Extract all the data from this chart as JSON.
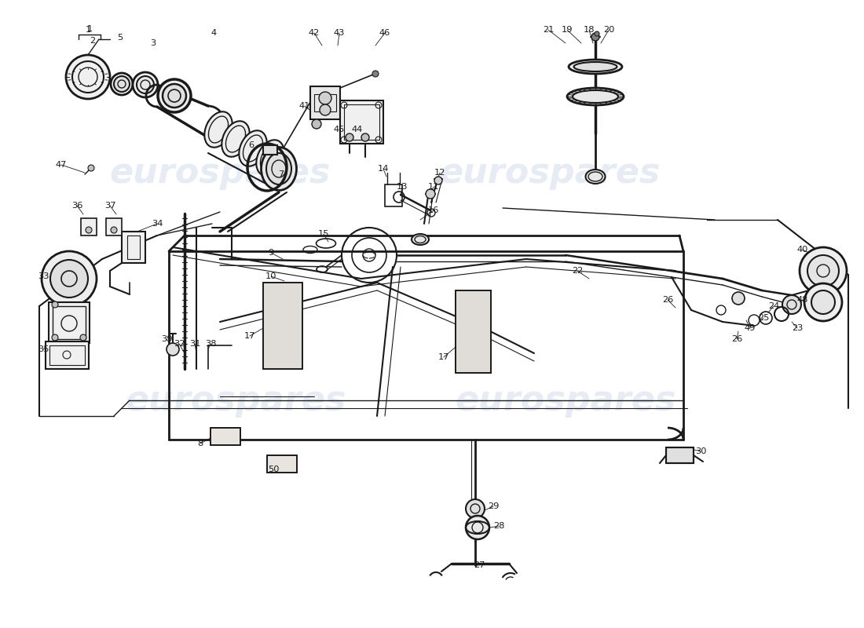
{
  "bg_color": "#ffffff",
  "line_color": "#1a1a1a",
  "watermark_color": "#c8d4e8",
  "watermark_text": "eurospares",
  "figsize": [
    11.0,
    8.0
  ],
  "dpi": 100,
  "xlim": [
    0,
    1100
  ],
  "ylim": [
    0,
    800
  ]
}
